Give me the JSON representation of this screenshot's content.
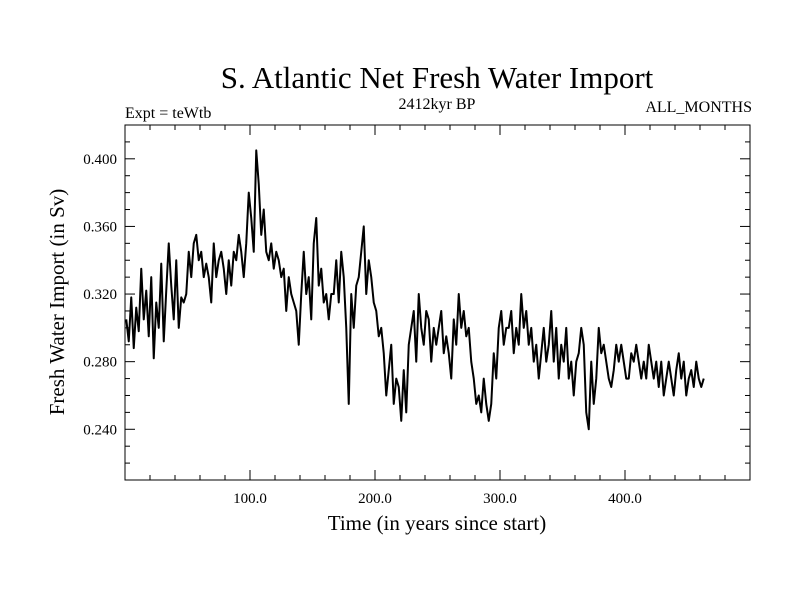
{
  "chart_data": {
    "type": "line",
    "title": "S. Atlantic Net Fresh Water Import",
    "subtitle_left": "Expt = teWtb",
    "subtitle_center": "2412kyr BP",
    "subtitle_right": "ALL_MONTHS",
    "xlabel": "Time (in years since start)",
    "ylabel": "Fresh Water Import (in Sv)",
    "xlim": [
      0,
      500
    ],
    "ylim": [
      0.21,
      0.42
    ],
    "x_ticks": [
      100.0,
      200.0,
      300.0,
      400.0
    ],
    "x_tick_labels": [
      "100.0",
      "200.0",
      "300.0",
      "400.0"
    ],
    "y_ticks": [
      0.24,
      0.28,
      0.32,
      0.36,
      0.4
    ],
    "y_tick_labels": [
      "0.240",
      "0.280",
      "0.320",
      "0.360",
      "0.400"
    ],
    "x_minor_step": 20,
    "y_minor_step": 0.01,
    "grid": false,
    "series": [
      {
        "name": "Fresh Water Import",
        "x_start": 1,
        "x_step": 2,
        "values": [
          0.305,
          0.292,
          0.318,
          0.288,
          0.312,
          0.298,
          0.335,
          0.305,
          0.322,
          0.295,
          0.33,
          0.282,
          0.315,
          0.3,
          0.338,
          0.292,
          0.322,
          0.35,
          0.325,
          0.305,
          0.34,
          0.3,
          0.318,
          0.315,
          0.32,
          0.345,
          0.33,
          0.35,
          0.355,
          0.34,
          0.345,
          0.33,
          0.338,
          0.33,
          0.315,
          0.35,
          0.33,
          0.34,
          0.345,
          0.335,
          0.32,
          0.34,
          0.325,
          0.345,
          0.34,
          0.355,
          0.345,
          0.33,
          0.35,
          0.38,
          0.365,
          0.345,
          0.405,
          0.385,
          0.355,
          0.37,
          0.345,
          0.34,
          0.35,
          0.335,
          0.345,
          0.34,
          0.33,
          0.335,
          0.31,
          0.33,
          0.32,
          0.315,
          0.31,
          0.29,
          0.32,
          0.345,
          0.32,
          0.33,
          0.305,
          0.35,
          0.365,
          0.325,
          0.335,
          0.315,
          0.32,
          0.305,
          0.32,
          0.32,
          0.34,
          0.315,
          0.345,
          0.33,
          0.3,
          0.255,
          0.32,
          0.3,
          0.325,
          0.33,
          0.345,
          0.36,
          0.32,
          0.34,
          0.33,
          0.315,
          0.31,
          0.295,
          0.3,
          0.285,
          0.26,
          0.275,
          0.29,
          0.255,
          0.27,
          0.265,
          0.245,
          0.275,
          0.25,
          0.29,
          0.3,
          0.31,
          0.28,
          0.32,
          0.3,
          0.29,
          0.31,
          0.305,
          0.28,
          0.3,
          0.29,
          0.3,
          0.31,
          0.285,
          0.295,
          0.285,
          0.27,
          0.305,
          0.29,
          0.32,
          0.3,
          0.31,
          0.295,
          0.3,
          0.28,
          0.27,
          0.255,
          0.26,
          0.25,
          0.27,
          0.255,
          0.245,
          0.255,
          0.285,
          0.27,
          0.3,
          0.31,
          0.29,
          0.3,
          0.3,
          0.31,
          0.285,
          0.3,
          0.29,
          0.32,
          0.3,
          0.31,
          0.29,
          0.3,
          0.28,
          0.29,
          0.27,
          0.285,
          0.3,
          0.28,
          0.29,
          0.31,
          0.28,
          0.3,
          0.27,
          0.29,
          0.28,
          0.3,
          0.27,
          0.28,
          0.26,
          0.28,
          0.285,
          0.3,
          0.29,
          0.25,
          0.24,
          0.28,
          0.255,
          0.27,
          0.3,
          0.285,
          0.29,
          0.28,
          0.27,
          0.265,
          0.275,
          0.29,
          0.28,
          0.29,
          0.28,
          0.27,
          0.27,
          0.285,
          0.28,
          0.29,
          0.28,
          0.27,
          0.28,
          0.27,
          0.29,
          0.28,
          0.27,
          0.28,
          0.265,
          0.28,
          0.26,
          0.27,
          0.28,
          0.27,
          0.26,
          0.275,
          0.285,
          0.27,
          0.28,
          0.26,
          0.27,
          0.275,
          0.265,
          0.28,
          0.27,
          0.265,
          0.27
        ]
      }
    ]
  }
}
